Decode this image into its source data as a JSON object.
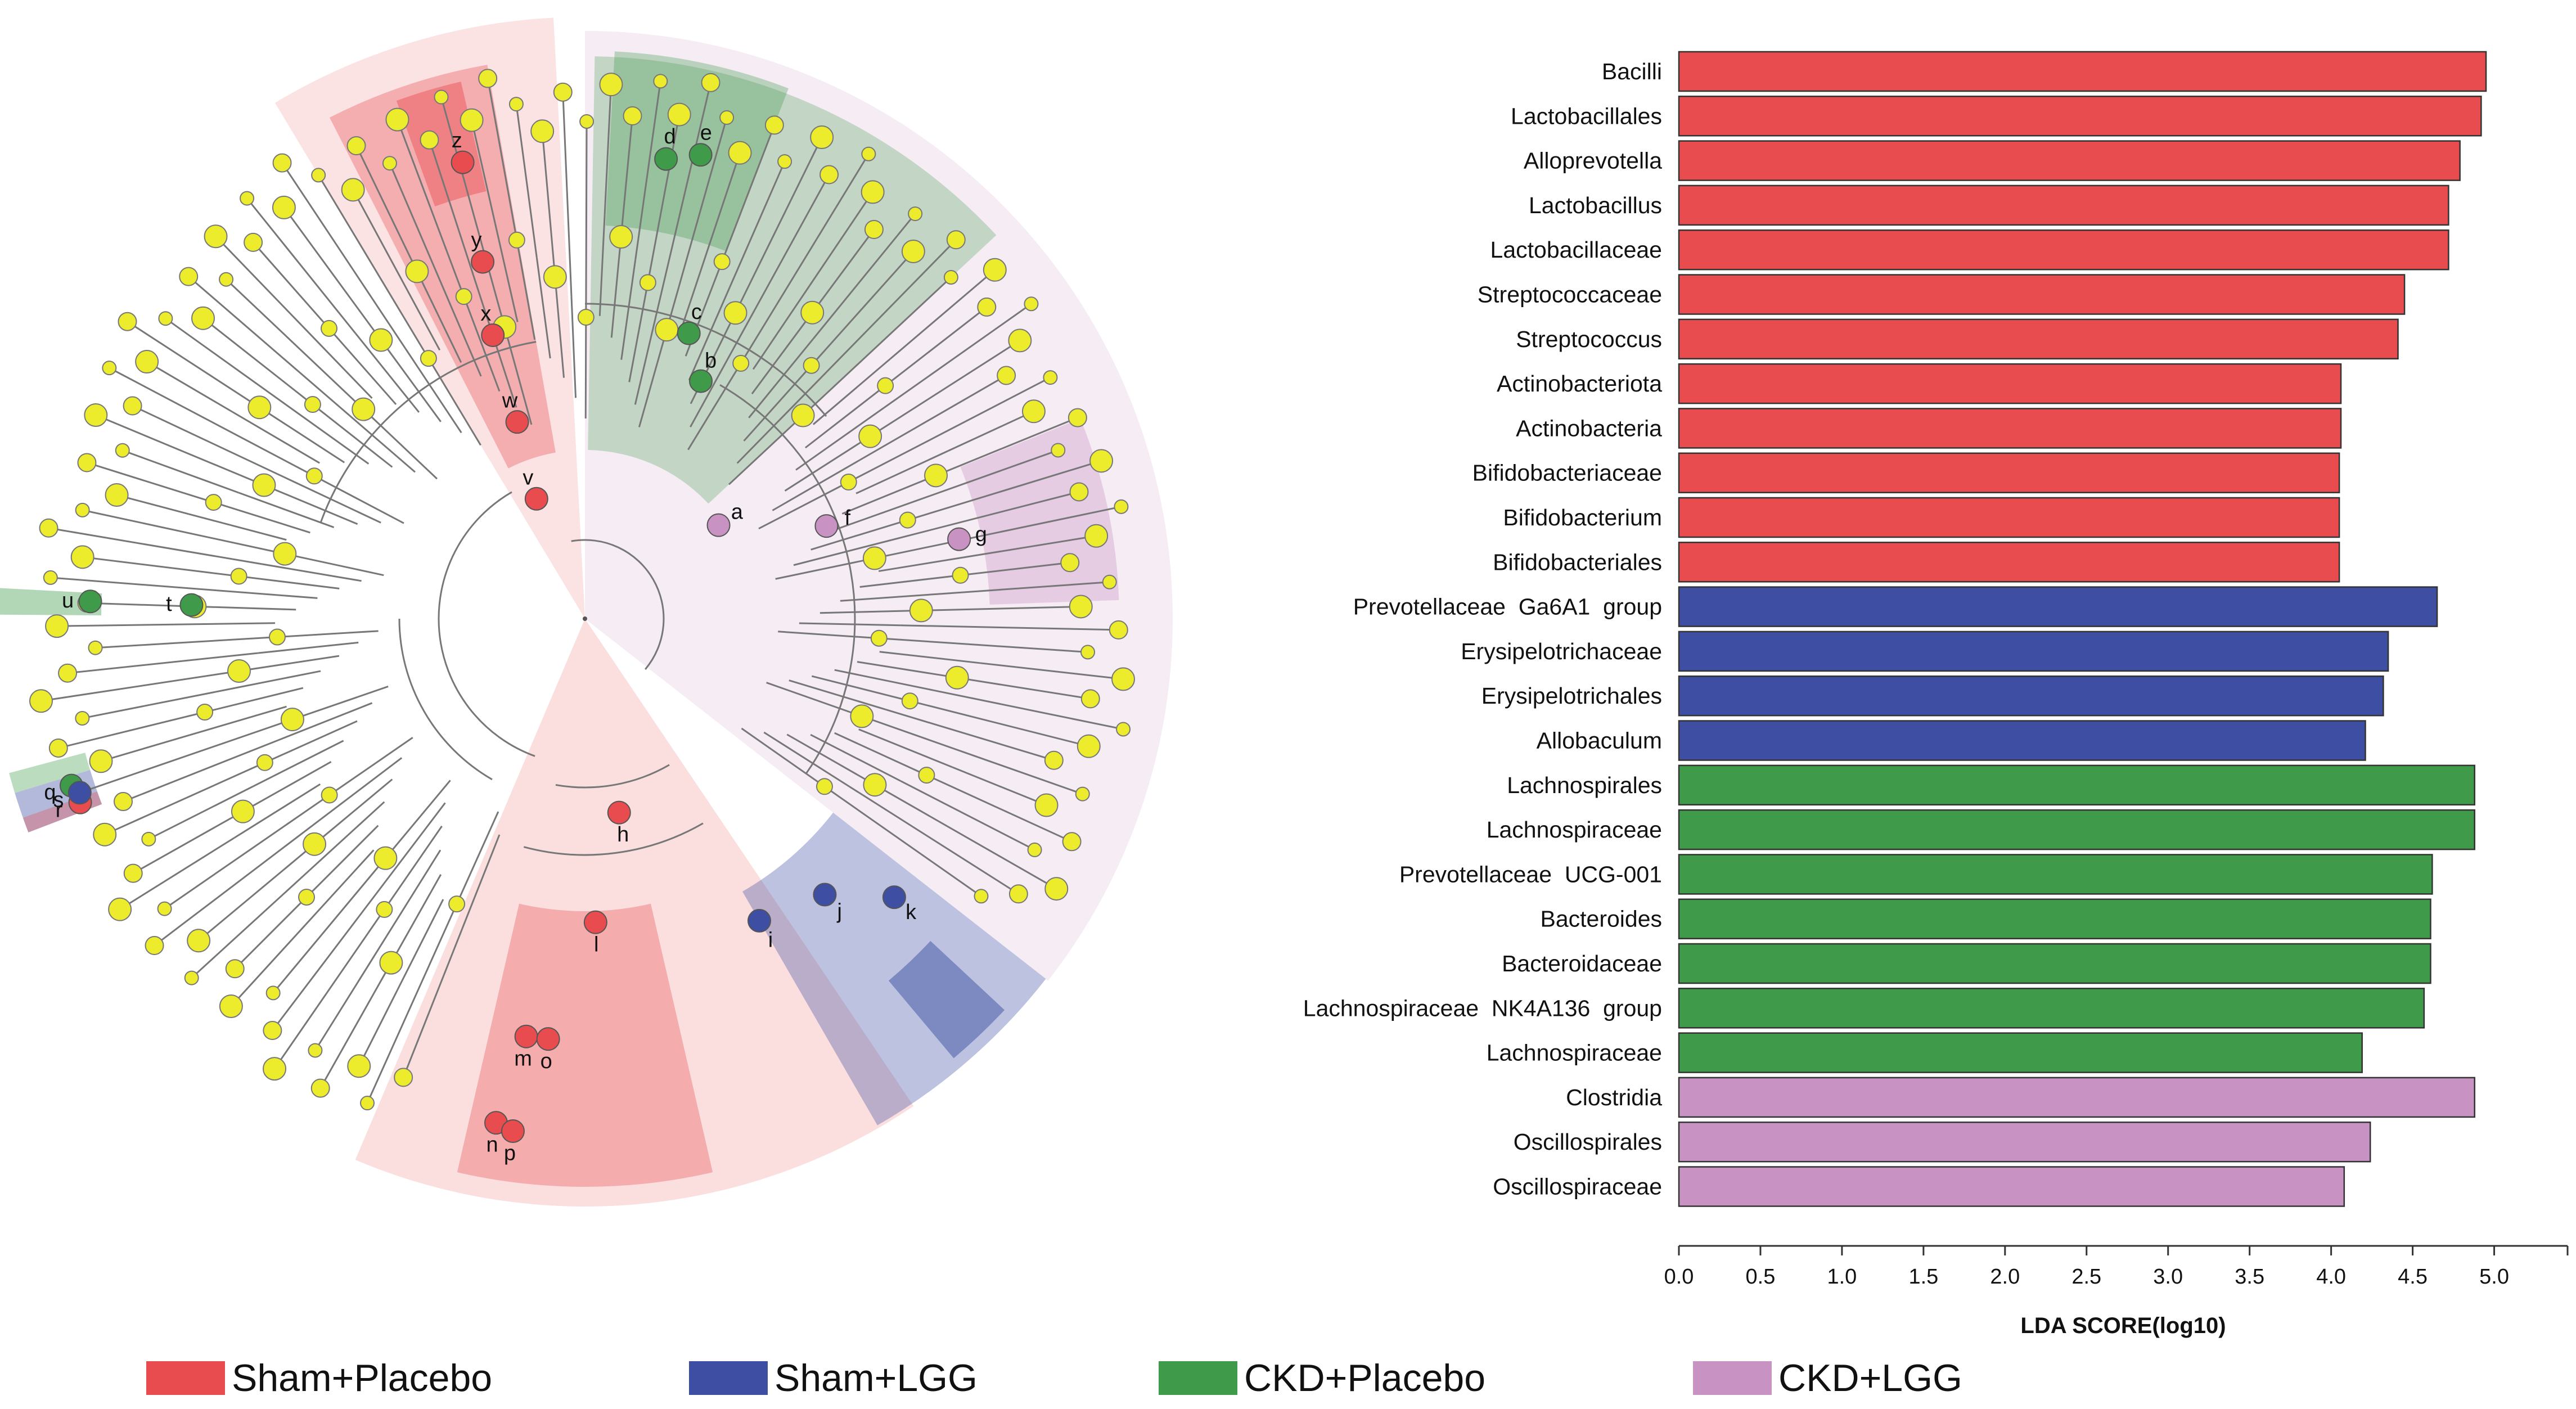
{
  "figure": {
    "colors": {
      "sham_placebo": "#e84c4f",
      "sham_lgg": "#3e4fa3",
      "ckd_placebo": "#3f9a4a",
      "ckd_lgg": "#c893c3",
      "node_yellow": "#ecec2c",
      "branch": "#777777"
    },
    "legend": [
      {
        "label": "Sham+Placebo",
        "color": "#e84c4f"
      },
      {
        "label": "Sham+LGG",
        "color": "#3e4fa3"
      },
      {
        "label": "CKD+Placebo",
        "color": "#3f9a4a"
      },
      {
        "label": "CKD+LGG",
        "color": "#c893c3"
      }
    ]
  },
  "cladogram": {
    "type": "cladogram",
    "labeled_nodes": [
      {
        "letter": "a",
        "group": "ckd_lgg"
      },
      {
        "letter": "b",
        "group": "ckd_placebo"
      },
      {
        "letter": "c",
        "group": "ckd_placebo"
      },
      {
        "letter": "d",
        "group": "ckd_placebo"
      },
      {
        "letter": "e",
        "group": "ckd_placebo"
      },
      {
        "letter": "f",
        "group": "ckd_lgg"
      },
      {
        "letter": "g",
        "group": "ckd_lgg"
      },
      {
        "letter": "h",
        "group": "sham_placebo"
      },
      {
        "letter": "i",
        "group": "sham_lgg"
      },
      {
        "letter": "j",
        "group": "sham_lgg"
      },
      {
        "letter": "k",
        "group": "sham_lgg"
      },
      {
        "letter": "l",
        "group": "sham_placebo"
      },
      {
        "letter": "m",
        "group": "sham_placebo"
      },
      {
        "letter": "n",
        "group": "sham_placebo"
      },
      {
        "letter": "o",
        "group": "sham_placebo"
      },
      {
        "letter": "p",
        "group": "sham_placebo"
      },
      {
        "letter": "q",
        "group": "ckd_placebo"
      },
      {
        "letter": "r",
        "group": "sham_placebo"
      },
      {
        "letter": "s",
        "group": "sham_lgg"
      },
      {
        "letter": "t",
        "group": "ckd_placebo"
      },
      {
        "letter": "u",
        "group": "ckd_placebo"
      },
      {
        "letter": "v",
        "group": "sham_placebo"
      },
      {
        "letter": "w",
        "group": "sham_placebo"
      },
      {
        "letter": "x",
        "group": "sham_placebo"
      },
      {
        "letter": "y",
        "group": "sham_placebo"
      },
      {
        "letter": "z",
        "group": "sham_placebo"
      }
    ]
  },
  "chart_data": {
    "type": "bar",
    "orientation": "horizontal",
    "xlabel": "LDA SCORE(log10)",
    "xlim": [
      0,
      5.45
    ],
    "xticks": [
      "0.0",
      "0.5",
      "1.0",
      "1.5",
      "2.0",
      "2.5",
      "3.0",
      "3.5",
      "4.0",
      "4.5",
      "5.0"
    ],
    "grid": false,
    "legend_position": "bottom",
    "bars": [
      {
        "label": "Bacilli",
        "value": 4.95,
        "group": "sham_placebo"
      },
      {
        "label": "Lactobacillales",
        "value": 4.92,
        "group": "sham_placebo"
      },
      {
        "label": "Alloprevotella",
        "value": 4.79,
        "group": "sham_placebo"
      },
      {
        "label": "Lactobacillus",
        "value": 4.72,
        "group": "sham_placebo"
      },
      {
        "label": "Lactobacillaceae",
        "value": 4.72,
        "group": "sham_placebo"
      },
      {
        "label": "Streptococcaceae",
        "value": 4.45,
        "group": "sham_placebo"
      },
      {
        "label": "Streptococcus",
        "value": 4.41,
        "group": "sham_placebo"
      },
      {
        "label": "Actinobacteriota",
        "value": 4.06,
        "group": "sham_placebo"
      },
      {
        "label": "Actinobacteria",
        "value": 4.06,
        "group": "sham_placebo"
      },
      {
        "label": "Bifidobacteriaceae",
        "value": 4.05,
        "group": "sham_placebo"
      },
      {
        "label": "Bifidobacterium",
        "value": 4.05,
        "group": "sham_placebo"
      },
      {
        "label": "Bifidobacteriales",
        "value": 4.05,
        "group": "sham_placebo"
      },
      {
        "label": "Prevotellaceae  Ga6A1  group",
        "value": 4.65,
        "group": "sham_lgg"
      },
      {
        "label": "Erysipelotrichaceae",
        "value": 4.35,
        "group": "sham_lgg"
      },
      {
        "label": "Erysipelotrichales",
        "value": 4.32,
        "group": "sham_lgg"
      },
      {
        "label": "Allobaculum",
        "value": 4.21,
        "group": "sham_lgg"
      },
      {
        "label": "Lachnospirales",
        "value": 4.88,
        "group": "ckd_placebo"
      },
      {
        "label": "Lachnospiraceae",
        "value": 4.88,
        "group": "ckd_placebo"
      },
      {
        "label": "Prevotellaceae  UCG-001",
        "value": 4.62,
        "group": "ckd_placebo"
      },
      {
        "label": "Bacteroides",
        "value": 4.61,
        "group": "ckd_placebo"
      },
      {
        "label": "Bacteroidaceae",
        "value": 4.61,
        "group": "ckd_placebo"
      },
      {
        "label": "Lachnospiraceae  NK4A136  group",
        "value": 4.57,
        "group": "ckd_placebo"
      },
      {
        "label": "Lachnospiraceae",
        "value": 4.19,
        "group": "ckd_placebo"
      },
      {
        "label": "Clostridia",
        "value": 4.88,
        "group": "ckd_lgg"
      },
      {
        "label": "Oscillospirales",
        "value": 4.24,
        "group": "ckd_lgg"
      },
      {
        "label": "Oscillospiraceae",
        "value": 4.08,
        "group": "ckd_lgg"
      }
    ]
  }
}
